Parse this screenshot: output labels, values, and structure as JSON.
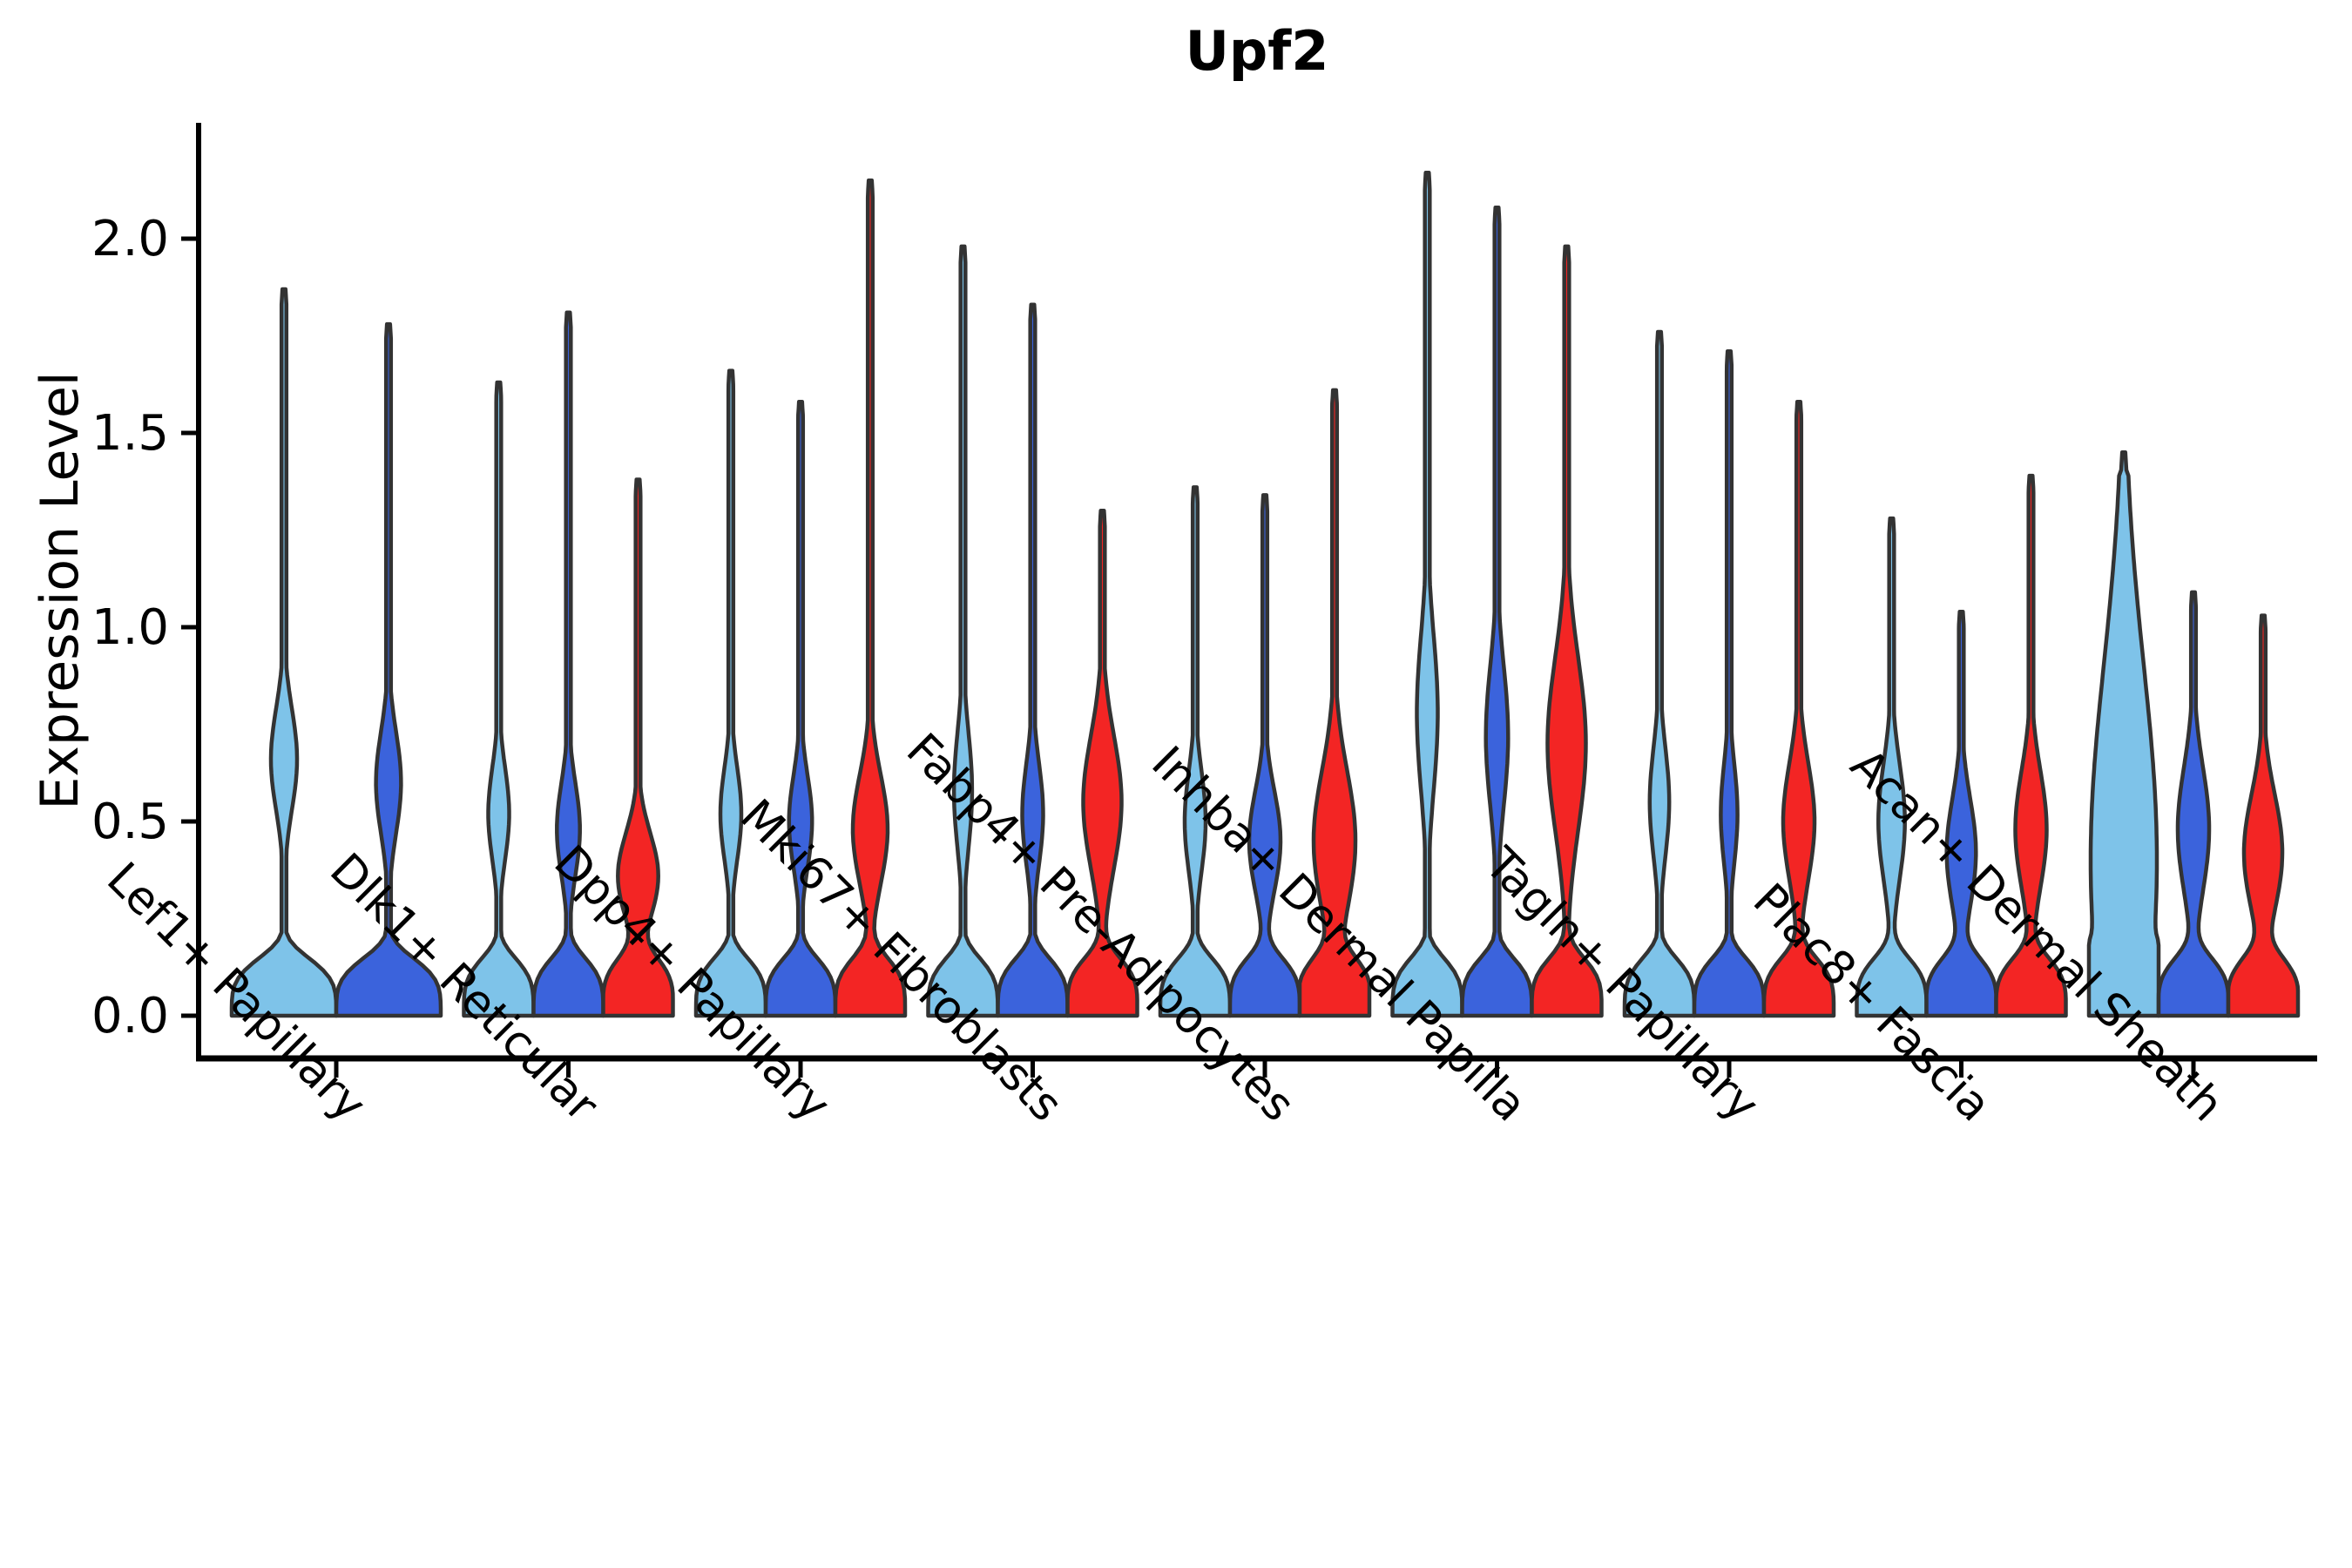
{
  "chart_data": {
    "type": "violin",
    "title": "Upf2",
    "ylabel": "Expression Level",
    "xlabel": "",
    "ylim": [
      0,
      2.29
    ],
    "grid": false,
    "legend": "none",
    "y_ticks": [
      "0.0",
      "0.5",
      "1.0",
      "1.5",
      "2.0"
    ],
    "y_tick_values": [
      0.0,
      0.5,
      1.0,
      1.5,
      2.0
    ],
    "categories": [
      "Lef1+ Papillary",
      "Dlk1+ Reticular",
      "Dpp4+ Papillary",
      "Mki67+ Fibroblasts",
      "Fabp4+ Pre-Adipocytes",
      "Inhba+ Dermal Papilla",
      "Tagln+ Papillary",
      "Plac8+ Fascia",
      "Acan+ Dermal Sheath"
    ],
    "series": [
      {
        "key": "series_1",
        "color": "#7EC3E9"
      },
      {
        "key": "series_2",
        "color": "#3B63DC"
      },
      {
        "key": "series_3",
        "color": "#F32524"
      }
    ],
    "edge_color": "#333333",
    "violins": [
      {
        "category": 0,
        "series": "series_1",
        "max": 1.87,
        "bulge_center": 0.66,
        "bulge_sigma": 0.13,
        "bulge_amp": 0.25
      },
      {
        "category": 0,
        "series": "series_2",
        "max": 1.78,
        "bulge_center": 0.6,
        "bulge_sigma": 0.13,
        "bulge_amp": 0.24
      },
      {
        "category": 1,
        "series": "series_1",
        "max": 1.63,
        "bulge_center": 0.52,
        "bulge_sigma": 0.12,
        "bulge_amp": 0.3
      },
      {
        "category": 1,
        "series": "series_2",
        "max": 1.81,
        "bulge_center": 0.48,
        "bulge_sigma": 0.12,
        "bulge_amp": 0.33
      },
      {
        "category": 1,
        "series": "series_3",
        "max": 1.38,
        "bulge_center": 0.36,
        "bulge_sigma": 0.11,
        "bulge_amp": 0.58
      },
      {
        "category": 2,
        "series": "series_1",
        "max": 1.66,
        "bulge_center": 0.52,
        "bulge_sigma": 0.12,
        "bulge_amp": 0.3
      },
      {
        "category": 2,
        "series": "series_2",
        "max": 1.58,
        "bulge_center": 0.5,
        "bulge_sigma": 0.12,
        "bulge_amp": 0.33
      },
      {
        "category": 2,
        "series": "series_3",
        "max": 2.15,
        "bulge_center": 0.48,
        "bulge_sigma": 0.14,
        "bulge_amp": 0.5
      },
      {
        "category": 3,
        "series": "series_1",
        "max": 1.98,
        "bulge_center": 0.58,
        "bulge_sigma": 0.15,
        "bulge_amp": 0.26
      },
      {
        "category": 3,
        "series": "series_2",
        "max": 1.83,
        "bulge_center": 0.52,
        "bulge_sigma": 0.13,
        "bulge_amp": 0.3
      },
      {
        "category": 3,
        "series": "series_3",
        "max": 1.3,
        "bulge_center": 0.55,
        "bulge_sigma": 0.17,
        "bulge_amp": 0.55
      },
      {
        "category": 4,
        "series": "series_1",
        "max": 1.36,
        "bulge_center": 0.5,
        "bulge_sigma": 0.13,
        "bulge_amp": 0.3
      },
      {
        "category": 4,
        "series": "series_2",
        "max": 1.34,
        "bulge_center": 0.45,
        "bulge_sigma": 0.13,
        "bulge_amp": 0.45
      },
      {
        "category": 4,
        "series": "series_3",
        "max": 1.61,
        "bulge_center": 0.45,
        "bulge_sigma": 0.18,
        "bulge_amp": 0.6
      },
      {
        "category": 5,
        "series": "series_1",
        "max": 2.17,
        "bulge_center": 0.78,
        "bulge_sigma": 0.2,
        "bulge_amp": 0.3
      },
      {
        "category": 5,
        "series": "series_2",
        "max": 2.08,
        "bulge_center": 0.72,
        "bulge_sigma": 0.18,
        "bulge_amp": 0.32
      },
      {
        "category": 5,
        "series": "series_3",
        "max": 1.98,
        "bulge_center": 0.7,
        "bulge_sigma": 0.22,
        "bulge_amp": 0.55
      },
      {
        "category": 6,
        "series": "series_1",
        "max": 1.76,
        "bulge_center": 0.55,
        "bulge_sigma": 0.14,
        "bulge_amp": 0.28
      },
      {
        "category": 6,
        "series": "series_2",
        "max": 1.71,
        "bulge_center": 0.52,
        "bulge_sigma": 0.13,
        "bulge_amp": 0.24
      },
      {
        "category": 6,
        "series": "series_3",
        "max": 1.58,
        "bulge_center": 0.5,
        "bulge_sigma": 0.15,
        "bulge_amp": 0.45
      },
      {
        "category": 7,
        "series": "series_1",
        "max": 1.28,
        "bulge_center": 0.5,
        "bulge_sigma": 0.15,
        "bulge_amp": 0.38
      },
      {
        "category": 7,
        "series": "series_2",
        "max": 1.04,
        "bulge_center": 0.42,
        "bulge_sigma": 0.14,
        "bulge_amp": 0.42
      },
      {
        "category": 7,
        "series": "series_3",
        "max": 1.39,
        "bulge_center": 0.48,
        "bulge_sigma": 0.15,
        "bulge_amp": 0.45
      },
      {
        "category": 8,
        "series": "series_1",
        "max": 1.45,
        "bulge_center": 0.4,
        "bulge_sigma": 0.5,
        "bulge_amp": 0.95
      },
      {
        "category": 8,
        "series": "series_2",
        "max": 1.09,
        "bulge_center": 0.48,
        "bulge_sigma": 0.16,
        "bulge_amp": 0.45
      },
      {
        "category": 8,
        "series": "series_3",
        "max": 1.03,
        "bulge_center": 0.42,
        "bulge_sigma": 0.15,
        "bulge_amp": 0.55
      }
    ]
  }
}
